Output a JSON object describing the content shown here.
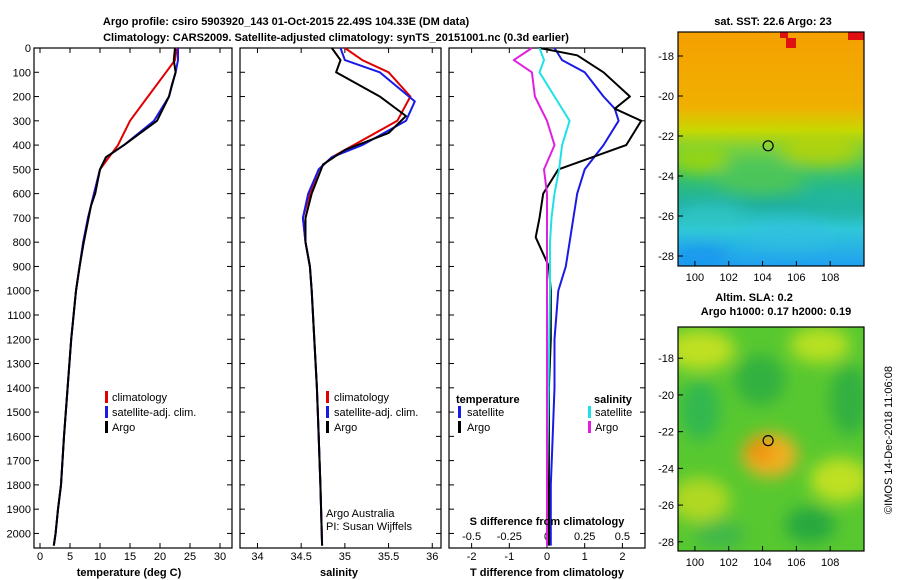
{
  "header": {
    "line1": "Argo profile: csiro 5903920_143 01-Oct-2015 22.49S 104.33E (DM data)",
    "line2": "Climatology: CARS2009. Satellite-adjusted climatology: synTS_20151001.nc (0.3d earlier)"
  },
  "footer_stamp": "©IMOS 14-Dec-2018 11:06:08",
  "colors": {
    "climatology": "#e00000",
    "satellite": "#1a1ae6",
    "argo": "#000000",
    "sat_sal": "#20e0e8",
    "sal_diff": "#e020e0"
  },
  "chart_data": [
    {
      "id": "temperature",
      "type": "line",
      "xlabel": "temperature (deg C)",
      "ylabel": "depth",
      "xlim": [
        -1,
        32
      ],
      "ylim": [
        2060,
        0
      ],
      "xticks": [
        0,
        5,
        10,
        15,
        20,
        25,
        30
      ],
      "xtick_labels": [
        "0",
        "5",
        "10",
        "15",
        "20",
        "25",
        "30"
      ],
      "yticks": [
        0,
        100,
        200,
        300,
        400,
        500,
        600,
        700,
        800,
        900,
        1000,
        1100,
        1200,
        1300,
        1400,
        1500,
        1600,
        1700,
        1800,
        1900,
        2000
      ],
      "ytick_labels": [
        "0",
        "100",
        "200",
        "300",
        "400",
        "500",
        "600",
        "700",
        "800",
        "900",
        "1000",
        "1100",
        "1200",
        "1300",
        "1400",
        "1500",
        "1600",
        "1700",
        "1800",
        "1900",
        "2000"
      ],
      "legend": [
        "climatology",
        "satellite-adj. clim.",
        "Argo"
      ],
      "series": [
        {
          "name": "climatology",
          "color": "#e00000",
          "x": [
            22.8,
            22.5,
            21,
            18,
            15,
            13,
            11.5,
            10,
            9,
            8,
            7.2,
            6.6,
            6,
            5.2,
            4.6,
            4,
            3.5,
            3,
            2.6,
            2.3
          ],
          "y": [
            0,
            50,
            100,
            200,
            300,
            400,
            450,
            500,
            600,
            700,
            800,
            900,
            1000,
            1200,
            1400,
            1600,
            1800,
            1900,
            2000,
            2050
          ]
        },
        {
          "name": "satellite-adj. clim.",
          "color": "#1a1ae6",
          "x": [
            23,
            23,
            22.6,
            21.5,
            19,
            14,
            11,
            10,
            9,
            8,
            7.2,
            6.6,
            6,
            5.2,
            4.6,
            4,
            3.5,
            3,
            2.6,
            2.3
          ],
          "y": [
            0,
            50,
            100,
            200,
            300,
            400,
            450,
            500,
            600,
            700,
            800,
            900,
            1000,
            1200,
            1400,
            1600,
            1800,
            1900,
            2000,
            2050
          ]
        },
        {
          "name": "Argo",
          "color": "#000000",
          "x": [
            22.5,
            22.3,
            22.6,
            22,
            21.5,
            19.5,
            14,
            11,
            10,
            9.2,
            8.5,
            7.3,
            6.6,
            6,
            5.2,
            4.6,
            4,
            3.5,
            3,
            2.6,
            2.3
          ],
          "y": [
            0,
            50,
            100,
            150,
            200,
            300,
            400,
            450,
            500,
            600,
            650,
            800,
            900,
            1000,
            1200,
            1400,
            1600,
            1800,
            1900,
            2000,
            2050
          ]
        }
      ]
    },
    {
      "id": "salinity",
      "type": "line",
      "xlabel": "salinity",
      "ylim": [
        2060,
        0
      ],
      "xlim": [
        33.8,
        36.1
      ],
      "xticks": [
        34,
        34.5,
        35,
        35.5,
        36
      ],
      "xtick_labels": [
        "34",
        "34.5",
        "35",
        "35.5",
        "36"
      ],
      "legend": [
        "climatology",
        "satellite-adj. clim.",
        "Argo"
      ],
      "credit1": "Argo Australia",
      "credit2": "PI: Susan Wijffels",
      "series": [
        {
          "name": "climatology",
          "color": "#e00000",
          "x": [
            35,
            35.2,
            35.5,
            35.75,
            35.6,
            35.1,
            34.85,
            34.7,
            34.6,
            34.52,
            34.55,
            34.6,
            34.62,
            34.65,
            34.68,
            34.7,
            34.72,
            34.74
          ],
          "y": [
            0,
            50,
            100,
            200,
            300,
            400,
            450,
            500,
            600,
            700,
            800,
            900,
            1000,
            1200,
            1400,
            1600,
            1800,
            2050
          ]
        },
        {
          "name": "satellite-adj. clim.",
          "color": "#1a1ae6",
          "x": [
            34.95,
            35.0,
            35.4,
            35.8,
            35.7,
            35.2,
            34.85,
            34.7,
            34.58,
            34.52,
            34.55,
            34.6,
            34.62,
            34.65,
            34.68,
            34.7,
            34.72,
            34.74
          ],
          "y": [
            0,
            50,
            100,
            220,
            300,
            400,
            450,
            500,
            600,
            700,
            800,
            900,
            1000,
            1200,
            1400,
            1600,
            1800,
            2050
          ]
        },
        {
          "name": "Argo",
          "color": "#000000",
          "x": [
            34.85,
            34.95,
            34.9,
            35.4,
            35.7,
            35.5,
            35.0,
            34.75,
            34.62,
            34.55,
            34.55,
            34.6,
            34.62,
            34.65,
            34.68,
            34.7,
            34.72,
            34.74
          ],
          "y": [
            0,
            50,
            100,
            200,
            280,
            350,
            420,
            480,
            600,
            700,
            800,
            900,
            1000,
            1200,
            1400,
            1600,
            1800,
            2050
          ]
        }
      ]
    },
    {
      "id": "difference",
      "type": "line",
      "xlabel": "T difference from climatology",
      "xlabel_top": "S difference from climatology",
      "xlim": [
        -2.6,
        2.6
      ],
      "ylim": [
        2060,
        0
      ],
      "xticks": [
        -2,
        -1,
        0,
        1,
        2
      ],
      "xtick_labels": [
        "-2",
        "-1",
        "0",
        "1",
        "2"
      ],
      "sticks": [
        -0.5,
        -0.25,
        0,
        0.25,
        0.5
      ],
      "stick_labels": [
        "-0.5",
        "-0.25",
        "0",
        "0.25",
        "0.5"
      ],
      "legend_temperature_title": "temperature",
      "legend_salinity_title": "salinity",
      "legend_t": [
        "satellite",
        "Argo"
      ],
      "legend_s": [
        "satellite",
        "Argo"
      ],
      "series": [
        {
          "name": "T satellite",
          "color": "#1a1ae6",
          "x": [
            0.2,
            0.4,
            1.0,
            1.5,
            1.8,
            1.9,
            1.5,
            1.0,
            0.8,
            0.7,
            0.6,
            0.5,
            0.3,
            0.2,
            0.2,
            0.15,
            0.1,
            0.1
          ],
          "y": [
            0,
            50,
            100,
            200,
            250,
            300,
            400,
            500,
            600,
            700,
            800,
            900,
            1000,
            1200,
            1400,
            1600,
            1800,
            2050
          ]
        },
        {
          "name": "T Argo",
          "color": "#000000",
          "x": [
            -0.2,
            0.8,
            1.5,
            2.2,
            1.8,
            2.5,
            2.1,
            0.3,
            -0.1,
            -0.2,
            -0.3,
            0.05,
            0.1,
            0.1,
            0.05,
            0.05,
            0.05,
            0.05
          ],
          "y": [
            0,
            30,
            100,
            200,
            250,
            300,
            400,
            500,
            600,
            700,
            780,
            900,
            1000,
            1200,
            1400,
            1600,
            1800,
            2050
          ]
        },
        {
          "name": "S satellite",
          "color": "#20e0e8",
          "x": [
            -0.05,
            -0.02,
            -0.05,
            0.05,
            0.15,
            0.1,
            0.08,
            0.05,
            0.03,
            0.02,
            0.02,
            0.01,
            0,
            0
          ],
          "y": [
            0,
            50,
            100,
            200,
            300,
            400,
            500,
            600,
            700,
            800,
            1000,
            1400,
            1800,
            2050
          ]
        },
        {
          "name": "S Argo",
          "color": "#e020e0",
          "x": [
            -0.1,
            -0.22,
            -0.1,
            -0.08,
            0,
            0.05,
            -0.02,
            0,
            0,
            0,
            0,
            0,
            0
          ],
          "y": [
            0,
            50,
            100,
            200,
            300,
            400,
            500,
            600,
            800,
            1000,
            1400,
            1800,
            2050
          ]
        }
      ]
    },
    {
      "id": "sst_map",
      "type": "heatmap",
      "title": "sat. SST: 22.6 Argo: 23",
      "xticks": [
        100,
        102,
        104,
        106,
        108
      ],
      "xtick_labels": [
        "100",
        "102",
        "104",
        "106",
        "108"
      ],
      "yticks": [
        -18,
        -20,
        -22,
        -24,
        -26,
        -28
      ],
      "ytick_labels": [
        "-18",
        "-20",
        "-22",
        "-24",
        "-26",
        "-28"
      ],
      "xlim": [
        99,
        110
      ],
      "ylim": [
        -28.5,
        -16.8
      ],
      "marker": {
        "lon": 104.33,
        "lat": -22.49
      }
    },
    {
      "id": "sla_map",
      "type": "heatmap",
      "title1": "Altim. SLA: 0.2",
      "title2": "Argo h1000: 0.17 h2000: 0.19",
      "xticks": [
        100,
        102,
        104,
        106,
        108
      ],
      "xtick_labels": [
        "100",
        "102",
        "104",
        "106",
        "108"
      ],
      "yticks": [
        -18,
        -20,
        -22,
        -24,
        -26,
        -28
      ],
      "ytick_labels": [
        "-18",
        "-20",
        "-22",
        "-24",
        "-26",
        "-28"
      ],
      "xlim": [
        99,
        110
      ],
      "ylim": [
        -28.5,
        -16.3
      ],
      "marker": {
        "lon": 104.33,
        "lat": -22.49
      }
    }
  ]
}
